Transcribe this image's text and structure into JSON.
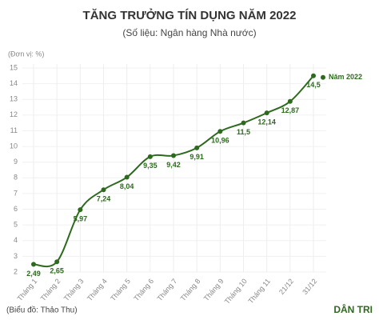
{
  "chart_data": {
    "type": "line",
    "title": "TĂNG TRƯỞNG TÍN DỤNG NĂM 2022",
    "subtitle": "(Số liệu: Ngân hàng Nhà nước)",
    "unit_label": "(Đơn vị: %)",
    "categories": [
      "Tháng 1",
      "Tháng 2",
      "Tháng 3",
      "Tháng 4",
      "Tháng 5",
      "Tháng 6",
      "Tháng 7",
      "Tháng 8",
      "Tháng 9",
      "Tháng 10",
      "Tháng 11",
      "21/12",
      "31/12"
    ],
    "series": [
      {
        "name": "Năm 2022",
        "color": "#2d6a1e",
        "values": [
          2.49,
          2.65,
          5.97,
          7.24,
          8.04,
          9.35,
          9.42,
          9.91,
          10.96,
          11.5,
          12.14,
          12.87,
          14.5
        ],
        "value_labels": [
          "2,49",
          "2,65",
          "5,97",
          "7,24",
          "8,04",
          "9,35",
          "9,42",
          "9,91",
          "10,96",
          "11,5",
          "12,14",
          "12,87",
          "14,5"
        ]
      }
    ],
    "ylim": [
      2,
      15
    ],
    "yticks": [
      2,
      3,
      4,
      5,
      6,
      7,
      8,
      9,
      10,
      11,
      12,
      13,
      14,
      15
    ],
    "grid": true,
    "source": "(Biểu đồ: Thảo Thu)",
    "logo": "DÂN TRI"
  }
}
